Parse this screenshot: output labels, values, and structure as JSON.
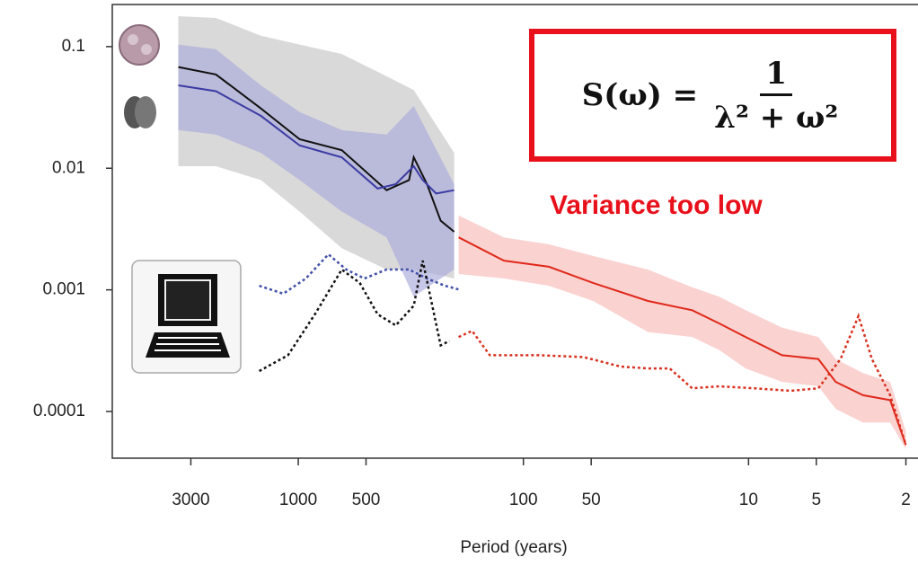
{
  "chart_data": {
    "type": "line",
    "xscale": "log",
    "yscale": "log",
    "xlabel": "Period (years)",
    "xlim": [
      6700,
      1.8
    ],
    "ylim": [
      4.13e-05,
      0.222
    ],
    "xticks": [
      3000,
      1000,
      500,
      100,
      50,
      10,
      5,
      2
    ],
    "yticks": [
      0.1,
      0.01,
      0.001,
      0.0001
    ],
    "bands": [
      {
        "color": "#c4c4c4",
        "x": [
          3410,
          2320,
          1466,
          986,
          641,
          405,
          307,
          203
        ],
        "upper": [
          0.178,
          0.172,
          0.123,
          0.104,
          0.087,
          0.057,
          0.044,
          0.0134
        ],
        "lower": [
          0.0104,
          0.0104,
          0.008,
          0.0044,
          0.0022,
          0.00147,
          0.00147,
          0.00124
        ]
      },
      {
        "color": "#a9a9dc",
        "x": [
          3410,
          2320,
          1466,
          986,
          641,
          405,
          307,
          203
        ],
        "upper": [
          0.104,
          0.095,
          0.048,
          0.029,
          0.0206,
          0.0189,
          0.0325,
          0.0074
        ],
        "lower": [
          0.0206,
          0.0189,
          0.0134,
          0.008,
          0.0044,
          0.0027,
          0.00088,
          0.00147
        ]
      },
      {
        "color": "#f8bcb8",
        "x": [
          194,
          122,
          77,
          49,
          28,
          17.8,
          13.5,
          10.3,
          7.1,
          4.9,
          4.1,
          3.1,
          2.35,
          2.0
        ],
        "upper": [
          0.0041,
          0.0027,
          0.00237,
          0.0019,
          0.00147,
          0.00105,
          0.00088,
          0.00068,
          0.00049,
          0.00041,
          0.00027,
          0.000207,
          0.000175,
          6.87e-05
        ],
        "lower": [
          0.00135,
          0.00124,
          0.00108,
          0.00081,
          0.00045,
          0.00041,
          0.00032,
          0.000226,
          0.000175,
          0.000161,
          0.000105,
          8.1e-05,
          8.1e-05,
          4.9e-05
        ]
      }
    ],
    "series": [
      {
        "color": "#111111",
        "style": "solid",
        "x": [
          3410,
          2320,
          1466,
          986,
          641,
          405,
          322,
          307,
          268,
          233,
          203
        ],
        "values": [
          0.068,
          0.059,
          0.031,
          0.0173,
          0.0141,
          0.0066,
          0.008,
          0.0123,
          0.0074,
          0.0037,
          0.003
        ]
      },
      {
        "color": "#3b3ba3",
        "style": "solid",
        "x": [
          3410,
          2320,
          1466,
          986,
          641,
          444,
          369,
          307,
          280,
          244,
          203
        ],
        "values": [
          0.048,
          0.043,
          0.027,
          0.0154,
          0.0123,
          0.0068,
          0.0074,
          0.0104,
          0.008,
          0.0062,
          0.0066
        ]
      },
      {
        "color": "#e0281a",
        "style": "solid",
        "x": [
          194,
          122,
          77,
          49,
          28,
          17.8,
          13.5,
          10.3,
          7.1,
          4.9,
          4.1,
          3.1,
          2.35,
          2.0
        ],
        "values": [
          0.0027,
          0.00174,
          0.00155,
          0.00114,
          0.00081,
          0.00068,
          0.00053,
          0.00041,
          0.00029,
          0.00027,
          0.000175,
          0.000136,
          0.000124,
          5.3e-05
        ]
      },
      {
        "color": "#4050a8",
        "style": "dotted",
        "x": [
          1490,
          1165,
          925,
          735,
          612,
          509,
          405,
          322,
          268,
          223,
          194
        ],
        "values": [
          0.00108,
          0.00093,
          0.00124,
          0.00196,
          0.00147,
          0.00124,
          0.00147,
          0.00147,
          0.00124,
          0.00108,
          0.00101
        ]
      },
      {
        "color": "#111111",
        "style": "dotted",
        "x": [
          1490,
          1111,
          843,
          641,
          533,
          444,
          369,
          307,
          280,
          233,
          213
        ],
        "values": [
          0.000215,
          0.00029,
          0.00063,
          0.00147,
          0.00114,
          0.00063,
          0.00051,
          0.00074,
          0.00174,
          0.00035,
          0.00038
        ]
      },
      {
        "color": "#d8301e",
        "style": "dotted",
        "x": [
          194,
          169,
          141,
          85,
          54,
          37,
          28,
          22.4,
          17.8,
          13.5,
          9.4,
          6.5,
          4.9,
          3.9,
          3.25,
          2.83,
          2.35,
          2.0
        ],
        "values": [
          0.00041,
          0.00046,
          0.00029,
          0.00029,
          0.00028,
          0.000234,
          0.000226,
          0.000226,
          0.000155,
          0.000161,
          0.000155,
          0.000148,
          0.000155,
          0.00027,
          0.00061,
          0.00027,
          0.000136,
          5.3e-05
        ]
      }
    ],
    "formula": {
      "lhs": "S(ω) =",
      "numerator": "1",
      "denominator": "λ² + ω²"
    },
    "annotation": "Variance too low"
  }
}
